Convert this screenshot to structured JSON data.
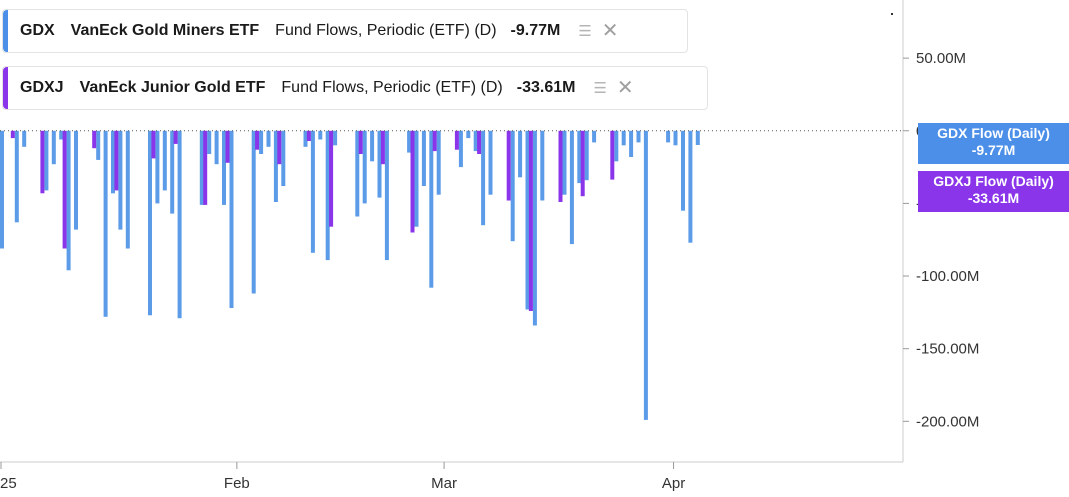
{
  "legend": [
    {
      "ticker": "GDX",
      "name": "VanEck Gold Miners ETF",
      "desc": "Fund Flows, Periodic (ETF) (D)",
      "value": "-9.77M",
      "color": "#4b8fe8"
    },
    {
      "ticker": "GDXJ",
      "name": "VanEck Junior Gold ETF",
      "desc": "Fund Flows, Periodic (ETF) (D)",
      "value": "-33.61M",
      "color": "#8b35ea"
    }
  ],
  "flags": [
    {
      "label": "GDX Flow (Daily)",
      "value": "-9.77M",
      "color": "#4b8fe8"
    },
    {
      "label": "GDXJ Flow (Daily)",
      "value": "-33.61M",
      "color": "#8b35ea"
    }
  ],
  "chart_data": {
    "type": "bar",
    "x_ticks": [
      "25",
      "Feb",
      "Mar",
      "Apr"
    ],
    "y_ticks": [
      "50.00M",
      "0",
      "-50.00M",
      "-100.00M",
      "-150.00M",
      "-200.00M"
    ],
    "y_tick_values": [
      50,
      0,
      -50,
      -100,
      -150,
      -200
    ],
    "ylim": [
      -228,
      90
    ],
    "xlim": [
      "2024-12-31",
      "2025-05-02"
    ],
    "series": [
      {
        "name": "GDX",
        "color": "#5b9be8",
        "data": [
          [
            "2024-12-31",
            -81
          ],
          [
            "2025-01-02",
            -63
          ],
          [
            "2025-01-03",
            -11
          ],
          [
            "2025-01-06",
            -41
          ],
          [
            "2025-01-07",
            -23
          ],
          [
            "2025-01-08",
            -6
          ],
          [
            "2025-01-09",
            -96
          ],
          [
            "2025-01-10",
            -68
          ],
          [
            "2025-01-13",
            -20
          ],
          [
            "2025-01-14",
            -128
          ],
          [
            "2025-01-15",
            -43
          ],
          [
            "2025-01-16",
            -68
          ],
          [
            "2025-01-17",
            -81
          ],
          [
            "2025-01-20",
            -127
          ],
          [
            "2025-01-21",
            -50
          ],
          [
            "2025-01-22",
            -41
          ],
          [
            "2025-01-23",
            -57
          ],
          [
            "2025-01-24",
            -129
          ],
          [
            "2025-01-27",
            -51
          ],
          [
            "2025-01-28",
            -16
          ],
          [
            "2025-01-29",
            -23
          ],
          [
            "2025-01-30",
            -51
          ],
          [
            "2025-01-31",
            -122
          ],
          [
            "2025-02-03",
            -112
          ],
          [
            "2025-02-04",
            -16
          ],
          [
            "2025-02-05",
            -11
          ],
          [
            "2025-02-06",
            -49
          ],
          [
            "2025-02-07",
            -38
          ],
          [
            "2025-02-10",
            -11
          ],
          [
            "2025-02-11",
            -84
          ],
          [
            "2025-02-12",
            -6
          ],
          [
            "2025-02-13",
            -89
          ],
          [
            "2025-02-14",
            -10
          ],
          [
            "2025-02-17",
            -59
          ],
          [
            "2025-02-18",
            -50
          ],
          [
            "2025-02-19",
            -21
          ],
          [
            "2025-02-20",
            -46
          ],
          [
            "2025-02-21",
            -89
          ],
          [
            "2025-02-24",
            -15
          ],
          [
            "2025-02-25",
            -66
          ],
          [
            "2025-02-26",
            -38
          ],
          [
            "2025-02-27",
            -108
          ],
          [
            "2025-02-28",
            -44
          ],
          [
            "2025-03-03",
            -25
          ],
          [
            "2025-03-04",
            -5
          ],
          [
            "2025-03-05",
            -14
          ],
          [
            "2025-03-06",
            -65
          ],
          [
            "2025-03-07",
            -44
          ],
          [
            "2025-03-10",
            -76
          ],
          [
            "2025-03-11",
            -32
          ],
          [
            "2025-03-12",
            -123
          ],
          [
            "2025-03-13",
            -134
          ],
          [
            "2025-03-14",
            -48
          ],
          [
            "2025-03-17",
            -44
          ],
          [
            "2025-03-18",
            -78
          ],
          [
            "2025-03-19",
            -36
          ],
          [
            "2025-03-20",
            -34
          ],
          [
            "2025-03-21",
            -8
          ],
          [
            "2025-03-24",
            -21
          ],
          [
            "2025-03-25",
            -10
          ],
          [
            "2025-03-26",
            -18
          ],
          [
            "2025-03-27",
            -8
          ],
          [
            "2025-03-28",
            -199
          ],
          [
            "2025-03-31",
            -8
          ],
          [
            "2025-04-01",
            -10
          ],
          [
            "2025-04-02",
            -55
          ],
          [
            "2025-04-03",
            -77
          ],
          [
            "2025-04-04",
            -9.77
          ]
        ]
      },
      {
        "name": "GDXJ",
        "color": "#8b35ea",
        "data": [
          [
            "2025-01-02",
            -5
          ],
          [
            "2025-01-06",
            -43
          ],
          [
            "2025-01-09",
            -81
          ],
          [
            "2025-01-13",
            -12
          ],
          [
            "2025-01-16",
            -41
          ],
          [
            "2025-01-21",
            -19
          ],
          [
            "2025-01-24",
            -9
          ],
          [
            "2025-01-28",
            -51
          ],
          [
            "2025-01-31",
            -22
          ],
          [
            "2025-02-04",
            -13
          ],
          [
            "2025-02-07",
            -23
          ],
          [
            "2025-02-11",
            -7
          ],
          [
            "2025-02-14",
            -66
          ],
          [
            "2025-02-18",
            -16
          ],
          [
            "2025-02-21",
            -23
          ],
          [
            "2025-02-25",
            -70
          ],
          [
            "2025-02-28",
            -14
          ],
          [
            "2025-03-03",
            -13
          ],
          [
            "2025-03-06",
            -16
          ],
          [
            "2025-03-10",
            -48
          ],
          [
            "2025-03-13",
            -124
          ],
          [
            "2025-03-17",
            -49
          ],
          [
            "2025-03-20",
            -45
          ],
          [
            "2025-03-24",
            -33.61
          ]
        ]
      }
    ],
    "grid": false,
    "legend_position": "top-left"
  }
}
